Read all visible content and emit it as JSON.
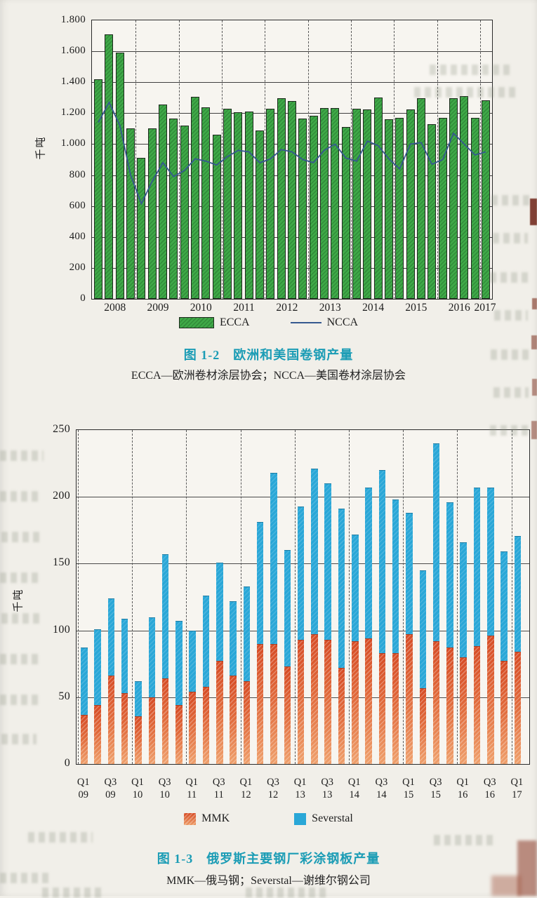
{
  "page_title": "欧洲和美国卷钢产量 / 俄罗斯主要钢厂彩涂钢板产量",
  "figure1": {
    "caption": "图 1-2　欧洲和美国卷钢产量",
    "subcaption": "ECCA—欧洲卷材涂层协会；NCCA—美国卷材涂层协会"
  },
  "figure2": {
    "caption": "图 1-3　俄罗斯主要钢厂彩涂钢板产量",
    "subcaption": "MMK—俄马钢；Severstal—谢维尔钢公司"
  },
  "chart_data": [
    {
      "type": "bar",
      "title": "图 1-2 欧洲和美国卷钢产量",
      "note": "ECCA—欧洲卷材涂层协会；NCCA—美国卷材涂层协会",
      "ylabel": "千吨",
      "ylim": [
        0,
        1800
      ],
      "ytick_step": 200,
      "ytick_labels": [
        "1.800",
        "1.600",
        "1.400",
        "1.200",
        "1.000",
        "800",
        "600",
        "400",
        "200",
        "0"
      ],
      "year_labels": [
        "2008",
        "2009",
        "2010",
        "2011",
        "2012",
        "2013",
        "2014",
        "2015",
        "2016",
        "2017"
      ],
      "x": [
        "2008Q1",
        "2008Q2",
        "2008Q3",
        "2008Q4",
        "2009Q1",
        "2009Q2",
        "2009Q3",
        "2009Q4",
        "2010Q1",
        "2010Q2",
        "2010Q3",
        "2010Q4",
        "2011Q1",
        "2011Q2",
        "2011Q3",
        "2011Q4",
        "2012Q1",
        "2012Q2",
        "2012Q3",
        "2012Q4",
        "2013Q1",
        "2013Q2",
        "2013Q3",
        "2013Q4",
        "2014Q1",
        "2014Q2",
        "2014Q3",
        "2014Q4",
        "2015Q1",
        "2015Q2",
        "2015Q3",
        "2015Q4",
        "2016Q1",
        "2016Q2",
        "2016Q3",
        "2016Q4",
        "2017Q1"
      ],
      "grid": true,
      "legend_position": "bottom",
      "series": [
        {
          "name": "ECCA",
          "type": "bar",
          "color": "#3fa948",
          "values": [
            1420,
            1710,
            1590,
            1100,
            910,
            1100,
            1255,
            1165,
            1120,
            1305,
            1240,
            1060,
            1230,
            1205,
            1210,
            1090,
            1230,
            1295,
            1280,
            1165,
            1185,
            1235,
            1235,
            1110,
            1230,
            1225,
            1300,
            1160,
            1170,
            1225,
            1295,
            1130,
            1170,
            1295,
            1310,
            1170,
            1285
          ]
        },
        {
          "name": "NCCA",
          "type": "line",
          "color": "#35598f",
          "values": [
            1140,
            1270,
            1120,
            800,
            615,
            760,
            880,
            790,
            830,
            905,
            890,
            865,
            920,
            960,
            950,
            880,
            905,
            965,
            950,
            900,
            880,
            960,
            1000,
            910,
            890,
            1020,
            990,
            905,
            840,
            1000,
            1010,
            870,
            900,
            1070,
            1000,
            930,
            950
          ]
        }
      ]
    },
    {
      "type": "stacked-bar",
      "title": "图 1-3 俄罗斯主要钢厂彩涂钢板产量",
      "note": "MMK—俄马钢；Severstal—谢维尔钢公司",
      "ylabel": "千吨",
      "ylim": [
        0,
        250
      ],
      "ytick_step": 50,
      "ytick_labels": [
        "250",
        "200",
        "150",
        "100",
        "50",
        "0"
      ],
      "x": [
        "2009Q1",
        "2009Q2",
        "2009Q3",
        "2009Q4",
        "2010Q1",
        "2010Q2",
        "2010Q3",
        "2010Q4",
        "2011Q1",
        "2011Q2",
        "2011Q3",
        "2011Q4",
        "2012Q1",
        "2012Q2",
        "2012Q3",
        "2012Q4",
        "2013Q1",
        "2013Q2",
        "2013Q3",
        "2013Q4",
        "2014Q1",
        "2014Q2",
        "2014Q3",
        "2014Q4",
        "2015Q1",
        "2015Q2",
        "2015Q3",
        "2015Q4",
        "2016Q1",
        "2016Q2",
        "2016Q3",
        "2016Q4",
        "2017Q1"
      ],
      "xtick_labels": [
        {
          "q": "Q1",
          "y": "09"
        },
        {
          "q": "Q3",
          "y": "09"
        },
        {
          "q": "Q1",
          "y": "10"
        },
        {
          "q": "Q3",
          "y": "10"
        },
        {
          "q": "Q1",
          "y": "11"
        },
        {
          "q": "Q3",
          "y": "11"
        },
        {
          "q": "Q1",
          "y": "12"
        },
        {
          "q": "Q3",
          "y": "12"
        },
        {
          "q": "Q1",
          "y": "13"
        },
        {
          "q": "Q3",
          "y": "13"
        },
        {
          "q": "Q1",
          "y": "14"
        },
        {
          "q": "Q3",
          "y": "14"
        },
        {
          "q": "Q1",
          "y": "15"
        },
        {
          "q": "Q3",
          "y": "15"
        },
        {
          "q": "Q1",
          "y": "16"
        },
        {
          "q": "Q3",
          "y": "16"
        },
        {
          "q": "Q1",
          "y": "17"
        }
      ],
      "grid": true,
      "legend_position": "bottom",
      "series": [
        {
          "name": "MMK",
          "color": "#d64c25",
          "values": [
            37,
            44,
            66,
            53,
            36,
            50,
            64,
            44,
            54,
            58,
            77,
            66,
            62,
            90,
            90,
            73,
            93,
            97,
            93,
            72,
            92,
            94,
            83,
            83,
            97,
            57,
            92,
            87,
            80,
            88,
            96,
            77,
            84
          ]
        },
        {
          "name": "Severstal",
          "color": "#2aa7d7",
          "values": [
            50,
            57,
            58,
            56,
            26,
            60,
            93,
            63,
            46,
            68,
            74,
            56,
            71,
            91,
            128,
            87,
            100,
            124,
            117,
            119,
            80,
            113,
            137,
            115,
            91,
            88,
            148,
            109,
            86,
            119,
            111,
            82,
            87
          ]
        }
      ]
    }
  ]
}
